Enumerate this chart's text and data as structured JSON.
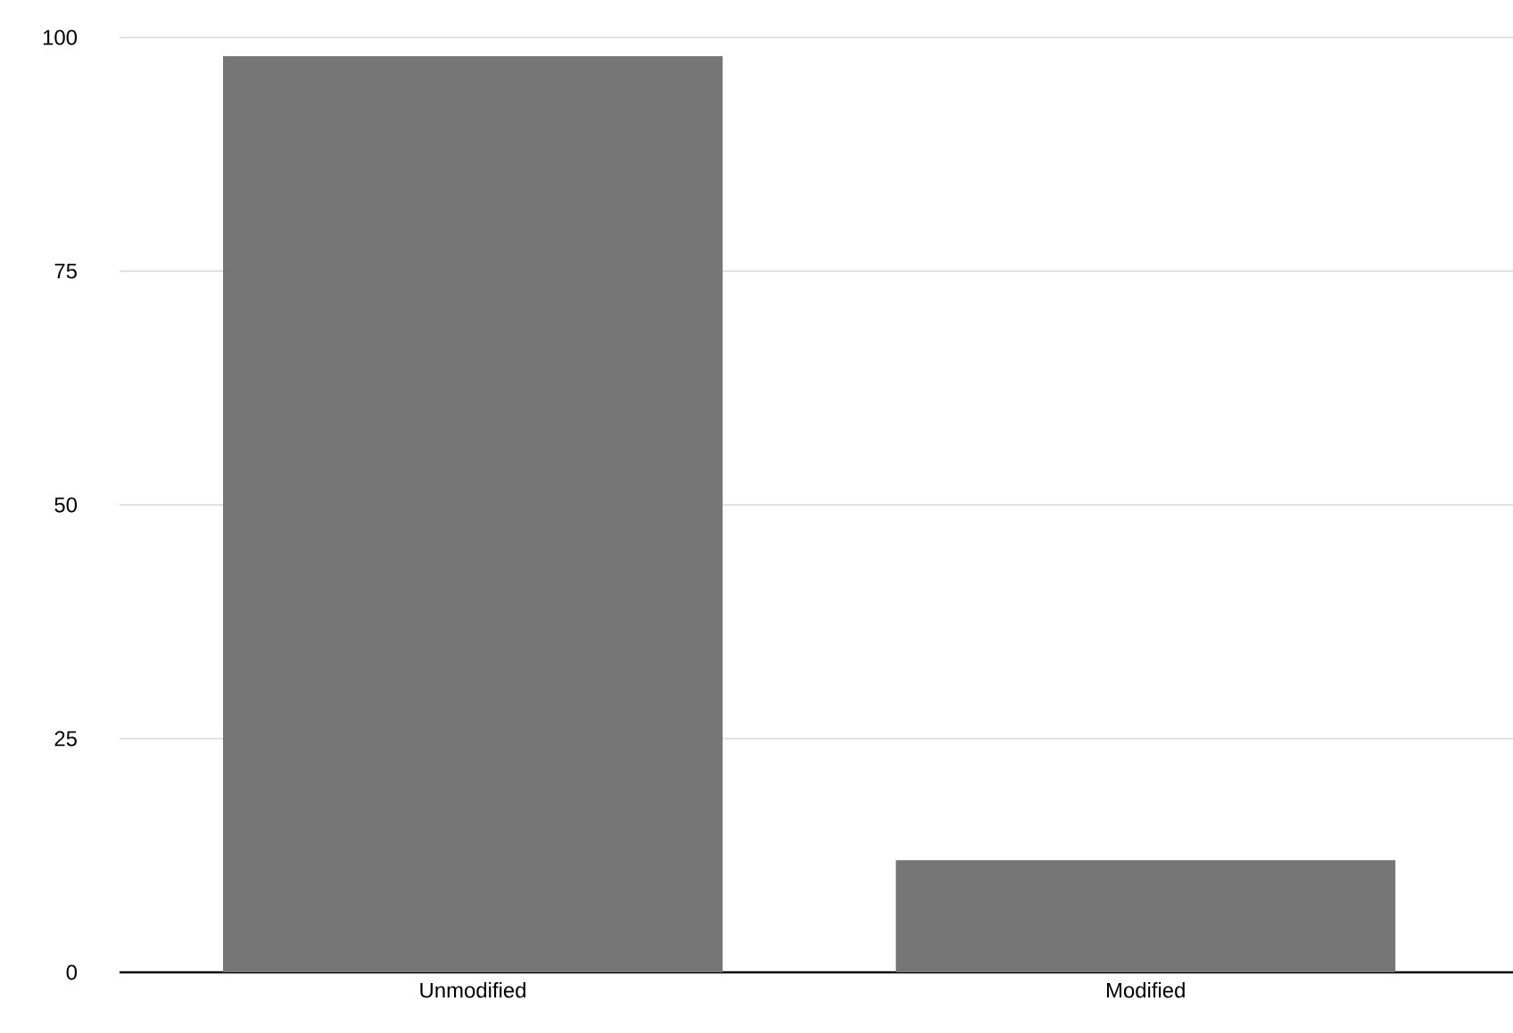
{
  "chart_data": {
    "type": "bar",
    "categories": [
      "Unmodified",
      "Modified"
    ],
    "values": [
      98,
      12
    ],
    "color": "#767676",
    "ylim": [
      0,
      100
    ],
    "yticks": [
      0,
      25,
      50,
      75,
      100
    ],
    "grid": "y"
  }
}
